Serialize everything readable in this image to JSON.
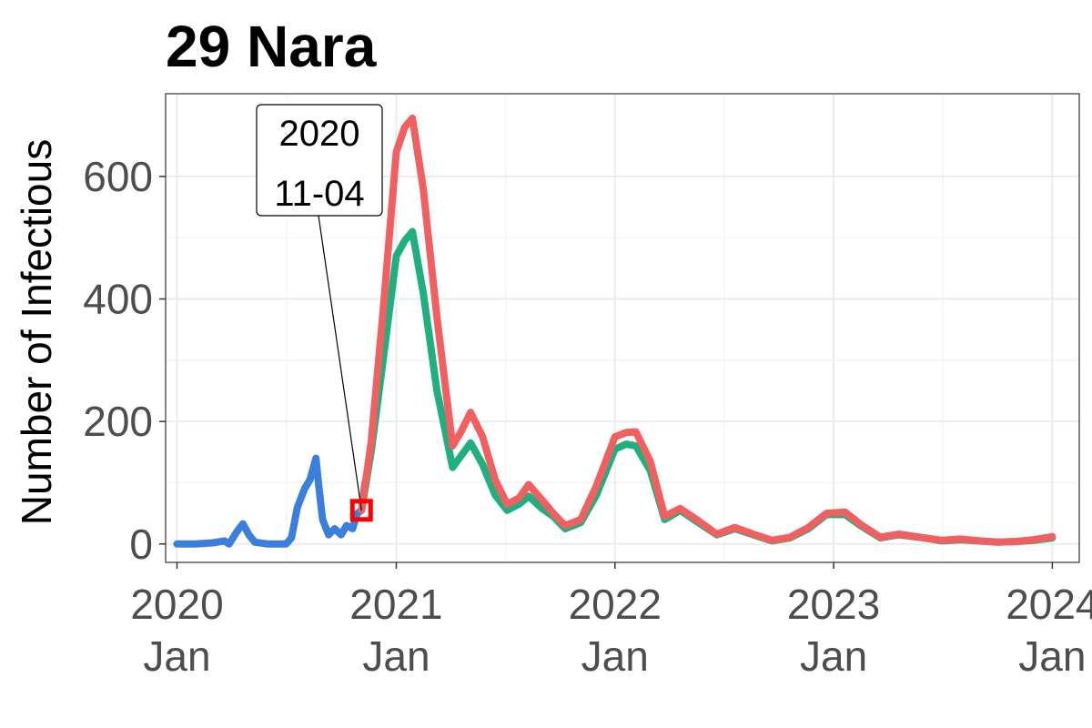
{
  "chart_data": {
    "type": "line",
    "title": "29 Nara",
    "ylabel": "Number of Infectious",
    "xlabel": "",
    "x_range": [
      "2019-12-13",
      "2024-02-15"
    ],
    "ylim": [
      -30,
      735
    ],
    "y_ticks": [
      0,
      200,
      400,
      600
    ],
    "x_ticks": [
      {
        "date": "2020-01-01",
        "year": "2020",
        "month": "Jan"
      },
      {
        "date": "2021-01-01",
        "year": "2021",
        "month": "Jan"
      },
      {
        "date": "2022-01-01",
        "year": "2022",
        "month": "Jan"
      },
      {
        "date": "2023-01-01",
        "year": "2023",
        "month": "Jan"
      },
      {
        "date": "2024-01-01",
        "year": "2024",
        "month": "Jan"
      }
    ],
    "grid": true,
    "legend": "none",
    "series": [
      {
        "color": "#3a7fdc",
        "points": [
          [
            "2020-01-01",
            0
          ],
          [
            "2020-02-01",
            0
          ],
          [
            "2020-03-01",
            2
          ],
          [
            "2020-03-20",
            5
          ],
          [
            "2020-03-28",
            0
          ],
          [
            "2020-04-10",
            20
          ],
          [
            "2020-04-20",
            33
          ],
          [
            "2020-04-30",
            15
          ],
          [
            "2020-05-10",
            3
          ],
          [
            "2020-06-01",
            0
          ],
          [
            "2020-07-01",
            0
          ],
          [
            "2020-07-10",
            10
          ],
          [
            "2020-07-20",
            60
          ],
          [
            "2020-08-01",
            90
          ],
          [
            "2020-08-10",
            105
          ],
          [
            "2020-08-20",
            140
          ],
          [
            "2020-08-24",
            100
          ],
          [
            "2020-08-31",
            40
          ],
          [
            "2020-09-10",
            15
          ],
          [
            "2020-09-20",
            25
          ],
          [
            "2020-10-01",
            15
          ],
          [
            "2020-10-10",
            30
          ],
          [
            "2020-10-20",
            25
          ],
          [
            "2020-10-28",
            50
          ],
          [
            "2020-11-04",
            55
          ],
          [
            "2020-11-07",
            80
          ],
          [
            "2020-11-10",
            100
          ]
        ]
      },
      {
        "color": "#20b07f",
        "points": [
          [
            "2020-11-04",
            55
          ],
          [
            "2020-11-20",
            150
          ],
          [
            "2020-12-10",
            300
          ],
          [
            "2021-01-01",
            470
          ],
          [
            "2021-01-15",
            495
          ],
          [
            "2021-01-28",
            510
          ],
          [
            "2021-02-15",
            410
          ],
          [
            "2021-03-10",
            250
          ],
          [
            "2021-04-05",
            125
          ],
          [
            "2021-04-20",
            145
          ],
          [
            "2021-05-05",
            165
          ],
          [
            "2021-05-25",
            130
          ],
          [
            "2021-06-15",
            80
          ],
          [
            "2021-07-05",
            55
          ],
          [
            "2021-07-25",
            65
          ],
          [
            "2021-08-10",
            78
          ],
          [
            "2021-09-01",
            58
          ],
          [
            "2021-09-20",
            45
          ],
          [
            "2021-10-10",
            25
          ],
          [
            "2021-11-05",
            35
          ],
          [
            "2021-12-01",
            80
          ],
          [
            "2022-01-01",
            155
          ],
          [
            "2022-01-20",
            163
          ],
          [
            "2022-02-05",
            160
          ],
          [
            "2022-03-01",
            120
          ],
          [
            "2022-03-25",
            40
          ],
          [
            "2022-04-20",
            55
          ],
          [
            "2022-05-20",
            35
          ],
          [
            "2022-06-20",
            15
          ],
          [
            "2022-07-20",
            25
          ],
          [
            "2022-08-20",
            15
          ],
          [
            "2022-09-20",
            5
          ],
          [
            "2022-10-20",
            10
          ],
          [
            "2022-11-20",
            25
          ],
          [
            "2022-12-20",
            48
          ],
          [
            "2023-01-20",
            48
          ],
          [
            "2023-02-15",
            30
          ],
          [
            "2023-03-20",
            10
          ],
          [
            "2023-04-20",
            15
          ],
          [
            "2023-06-01",
            10
          ],
          [
            "2023-07-01",
            5
          ],
          [
            "2023-08-01",
            7
          ],
          [
            "2023-09-01",
            5
          ],
          [
            "2023-10-01",
            3
          ],
          [
            "2023-11-01",
            4
          ],
          [
            "2023-12-01",
            6
          ],
          [
            "2024-01-01",
            10
          ]
        ]
      },
      {
        "color": "#f06060",
        "points": [
          [
            "2020-11-04",
            55
          ],
          [
            "2020-11-20",
            165
          ],
          [
            "2020-12-10",
            380
          ],
          [
            "2021-01-01",
            640
          ],
          [
            "2021-01-15",
            680
          ],
          [
            "2021-01-28",
            695
          ],
          [
            "2021-02-15",
            580
          ],
          [
            "2021-03-10",
            370
          ],
          [
            "2021-04-05",
            160
          ],
          [
            "2021-04-20",
            185
          ],
          [
            "2021-05-05",
            215
          ],
          [
            "2021-05-25",
            175
          ],
          [
            "2021-06-15",
            105
          ],
          [
            "2021-07-05",
            65
          ],
          [
            "2021-07-25",
            75
          ],
          [
            "2021-08-10",
            97
          ],
          [
            "2021-09-01",
            72
          ],
          [
            "2021-09-20",
            50
          ],
          [
            "2021-10-10",
            30
          ],
          [
            "2021-11-05",
            40
          ],
          [
            "2021-12-01",
            95
          ],
          [
            "2022-01-01",
            175
          ],
          [
            "2022-01-20",
            182
          ],
          [
            "2022-02-05",
            183
          ],
          [
            "2022-03-01",
            135
          ],
          [
            "2022-03-25",
            45
          ],
          [
            "2022-04-20",
            58
          ],
          [
            "2022-05-20",
            38
          ],
          [
            "2022-06-20",
            16
          ],
          [
            "2022-07-20",
            27
          ],
          [
            "2022-08-20",
            16
          ],
          [
            "2022-09-20",
            6
          ],
          [
            "2022-10-20",
            11
          ],
          [
            "2022-11-20",
            27
          ],
          [
            "2022-12-20",
            50
          ],
          [
            "2023-01-20",
            52
          ],
          [
            "2023-02-15",
            32
          ],
          [
            "2023-03-20",
            11
          ],
          [
            "2023-04-20",
            16
          ],
          [
            "2023-06-01",
            10
          ],
          [
            "2023-07-01",
            6
          ],
          [
            "2023-08-01",
            8
          ],
          [
            "2023-09-01",
            5
          ],
          [
            "2023-10-01",
            3
          ],
          [
            "2023-11-01",
            4
          ],
          [
            "2023-12-01",
            7
          ],
          [
            "2024-01-01",
            12
          ]
        ]
      }
    ],
    "annotation": {
      "date": "2020-11-04",
      "value": 55,
      "label_lines": [
        "2020",
        "11-04"
      ],
      "marker_color": "#ff0000"
    }
  }
}
